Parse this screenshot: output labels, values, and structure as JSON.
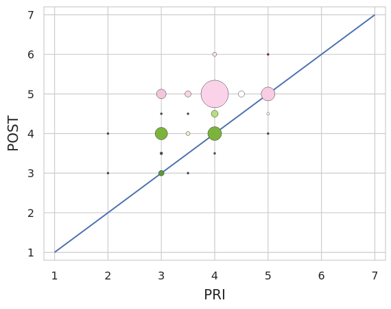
{
  "chart_data": {
    "type": "scatter",
    "title": "",
    "xlabel": "PRI",
    "ylabel": "POST",
    "xlim": [
      0.8,
      7.2
    ],
    "ylim": [
      0.8,
      7.2
    ],
    "xticks": [
      "1",
      "2",
      "3",
      "4",
      "5",
      "6",
      "7"
    ],
    "yticks": [
      "1",
      "2",
      "3",
      "4",
      "5",
      "6",
      "7"
    ],
    "grid": true,
    "reference_line": {
      "x": [
        1,
        7
      ],
      "y": [
        1,
        7
      ],
      "color": "#4c72b0"
    },
    "points": [
      {
        "x": 2,
        "y": 4,
        "size": 1.5,
        "color": "#4d4d4d"
      },
      {
        "x": 2,
        "y": 3,
        "size": 1.5,
        "color": "#4d4d4d"
      },
      {
        "x": 3,
        "y": 5,
        "size": 7,
        "color": "#f4c6de"
      },
      {
        "x": 3,
        "y": 4.5,
        "size": 1.5,
        "color": "#4d4d4d"
      },
      {
        "x": 3,
        "y": 4,
        "size": 9,
        "color": "#7bb33c"
      },
      {
        "x": 3,
        "y": 3.5,
        "size": 2,
        "color": "#4d4d4d"
      },
      {
        "x": 3,
        "y": 3,
        "size": 4,
        "color": "#5a9b33"
      },
      {
        "x": 3.5,
        "y": 5,
        "size": 4.5,
        "color": "#f8d4e6"
      },
      {
        "x": 3.5,
        "y": 4.5,
        "size": 1.5,
        "color": "#4d4d4d"
      },
      {
        "x": 3.5,
        "y": 4,
        "size": 3,
        "color": "#e8f0c8"
      },
      {
        "x": 3.5,
        "y": 3,
        "size": 1.5,
        "color": "#4d4d4d"
      },
      {
        "x": 4,
        "y": 6,
        "size": 3,
        "color": "#fbe0ee"
      },
      {
        "x": 4,
        "y": 5,
        "size": 20,
        "color": "#fbd3e8"
      },
      {
        "x": 4,
        "y": 4.5,
        "size": 5,
        "color": "#b5e07a"
      },
      {
        "x": 4,
        "y": 4,
        "size": 10,
        "color": "#7bb33c"
      },
      {
        "x": 4,
        "y": 3.5,
        "size": 1.5,
        "color": "#4d4d4d"
      },
      {
        "x": 4.5,
        "y": 5,
        "size": 4.5,
        "color": "#ffffff"
      },
      {
        "x": 5,
        "y": 6,
        "size": 1.5,
        "color": "#8b1a4a"
      },
      {
        "x": 5,
        "y": 5,
        "size": 10,
        "color": "#f8cce2"
      },
      {
        "x": 5,
        "y": 4.5,
        "size": 2,
        "color": "#ffffff"
      },
      {
        "x": 5,
        "y": 4,
        "size": 1.5,
        "color": "#4d4d4d"
      }
    ]
  }
}
